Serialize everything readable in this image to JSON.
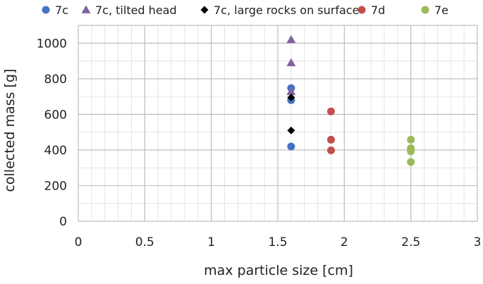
{
  "chart_data": {
    "type": "scatter",
    "title": "",
    "xlabel": "max particle size [cm]",
    "ylabel": "collected mass [g]",
    "xlim": [
      0,
      3
    ],
    "ylim": [
      0,
      1100
    ],
    "x_ticks": [
      0,
      0.5,
      1,
      1.5,
      2,
      2.5,
      3
    ],
    "y_ticks": [
      0,
      200,
      400,
      600,
      800,
      1000
    ],
    "grid": true,
    "minor_grid": true,
    "legend_position": "top",
    "series": [
      {
        "name": "7c",
        "marker": "circle",
        "color": "#4472C4",
        "points": [
          [
            1.6,
            748
          ],
          [
            1.6,
            680
          ],
          [
            1.6,
            420
          ]
        ]
      },
      {
        "name": "7c, tilted head",
        "marker": "triangle",
        "color": "#8064A2",
        "points": [
          [
            1.6,
            1020
          ],
          [
            1.6,
            890
          ],
          [
            1.6,
            728
          ]
        ]
      },
      {
        "name": "7c, large rocks on surface",
        "marker": "diamond",
        "color": "#000000",
        "points": [
          [
            1.6,
            695
          ],
          [
            1.6,
            510
          ]
        ]
      },
      {
        "name": "7d",
        "marker": "circle",
        "color": "#C0504D",
        "points": [
          [
            1.9,
            617
          ],
          [
            1.9,
            458
          ],
          [
            1.9,
            398
          ]
        ]
      },
      {
        "name": "7e",
        "marker": "circle",
        "color": "#9BBB59",
        "points": [
          [
            2.5,
            458
          ],
          [
            2.5,
            410
          ],
          [
            2.5,
            393
          ],
          [
            2.5,
            333
          ]
        ]
      }
    ]
  }
}
